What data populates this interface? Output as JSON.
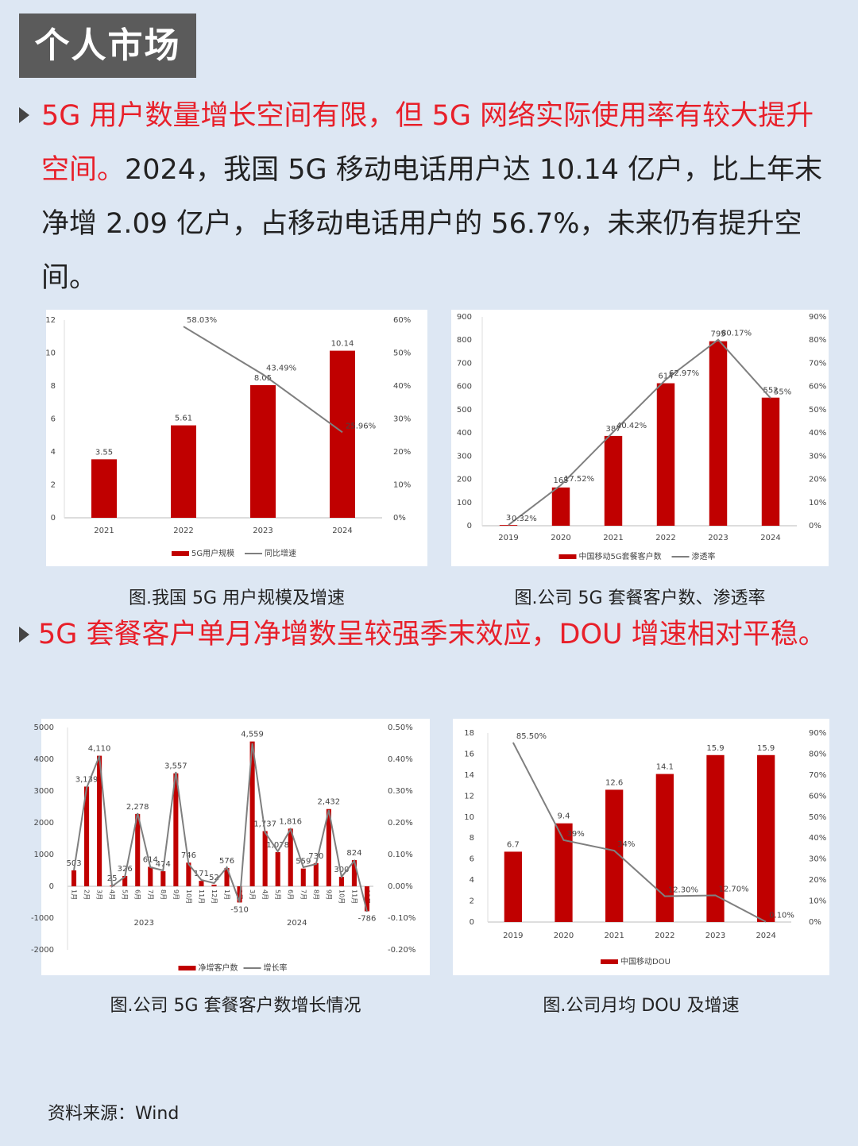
{
  "header": {
    "title": "个人市场"
  },
  "paragraphs": [
    {
      "highlight": "5G 用户数量增长空间有限，但 5G 网络实际使用率有较大提升空间。",
      "text": "2024，我国 5G 移动电话用户达 10.14 亿户，比上年末净增 2.09 亿户，占移动电话用户的 56.7%，未来仍有提升空间。"
    },
    {
      "highlight": "5G 套餐客户单月净增数呈较强季末效应，DOU 增速相对平稳。"
    }
  ],
  "captions": [
    "图.我国 5G 用户规模及增速",
    "图.公司 5G 套餐客户数、渗透率",
    "图.公司 5G 套餐客户数增长情况",
    "图.公司月均 DOU 及增速"
  ],
  "source": "资料来源：Wind",
  "chart_data": [
    {
      "type": "bar",
      "categories": [
        "2021",
        "2022",
        "2023",
        "2024"
      ],
      "series": [
        {
          "name": "5G用户规模",
          "type": "bar",
          "color": "#c00000",
          "values": [
            3.55,
            5.61,
            8.05,
            10.14
          ]
        },
        {
          "name": "同比增速",
          "type": "line",
          "axis": "y2",
          "color": "#7f7f7f",
          "values": [
            null,
            58.03,
            43.49,
            25.96
          ],
          "value_labels": [
            null,
            "58.03%",
            "43.49%",
            "25.96%"
          ]
        }
      ],
      "ylim": [
        0,
        12
      ],
      "yticks": [
        0,
        2,
        4,
        6,
        8,
        10,
        12
      ],
      "y2lim": [
        0,
        60
      ],
      "y2ticks": [
        {
          "value": 0,
          "label": "0%"
        },
        {
          "value": 10,
          "label": "10%"
        },
        {
          "value": 20,
          "label": "20%"
        },
        {
          "value": 30,
          "label": "30%"
        },
        {
          "value": 40,
          "label": "40%"
        },
        {
          "value": 50,
          "label": "50%"
        },
        {
          "value": 60,
          "label": "60%"
        }
      ],
      "grid": false
    },
    {
      "type": "bar",
      "categories": [
        "2019",
        "2020",
        "2021",
        "2022",
        "2023",
        "2024"
      ],
      "series": [
        {
          "name": "中国移动5G套餐客户数",
          "type": "bar",
          "color": "#c00000",
          "values": [
            3,
            165,
            387,
            614,
            795,
            552
          ]
        },
        {
          "name": "渗透率",
          "type": "line",
          "axis": "y2",
          "color": "#7f7f7f",
          "values": [
            0.32,
            17.52,
            40.42,
            62.97,
            80.17,
            55
          ],
          "value_labels": [
            "0.32%",
            "17.52%",
            "40.42%",
            "62.97%",
            "80.17%",
            "55%"
          ]
        }
      ],
      "ylim": [
        0,
        900
      ],
      "yticks": [
        0,
        100,
        200,
        300,
        400,
        500,
        600,
        700,
        800,
        900
      ],
      "y2lim": [
        0,
        90
      ],
      "y2ticks": [
        {
          "value": 0,
          "label": "0%"
        },
        {
          "value": 10,
          "label": "10%"
        },
        {
          "value": 20,
          "label": "20%"
        },
        {
          "value": 30,
          "label": "30%"
        },
        {
          "value": 40,
          "label": "40%"
        },
        {
          "value": 50,
          "label": "50%"
        },
        {
          "value": 60,
          "label": "60%"
        },
        {
          "value": 70,
          "label": "70%"
        },
        {
          "value": 80,
          "label": "80%"
        },
        {
          "value": 90,
          "label": "90%"
        }
      ],
      "grid": false
    },
    {
      "type": "bar",
      "categories": [
        "1月",
        "2月",
        "3月",
        "4月",
        "5月",
        "6月",
        "7月",
        "8月",
        "9月",
        "10月",
        "11月",
        "12月",
        "1月",
        "2月",
        "3月",
        "4月",
        "5月",
        "6月",
        "7月",
        "8月",
        "9月",
        "10月",
        "11月",
        "12月"
      ],
      "group_labels": [
        "2023",
        "2024"
      ],
      "series": [
        {
          "name": "净增客户数",
          "type": "bar",
          "color": "#c00000",
          "values": [
            503,
            3139,
            4110,
            25,
            326,
            2278,
            614,
            474,
            3557,
            746,
            171,
            52,
            576,
            -510,
            4559,
            1737,
            1078,
            1816,
            559,
            730,
            2432,
            300,
            824,
            -786
          ],
          "value_labels": [
            "503",
            "3,139",
            "4,110",
            "25",
            "326",
            "2,278",
            "614",
            "474",
            "3,557",
            "746",
            "171",
            "52",
            "576",
            "-510",
            "4,559",
            "1,737",
            "1,078",
            "1,816",
            "559",
            "730",
            "2,432",
            "300",
            "824",
            "-786"
          ]
        },
        {
          "name": "增长率",
          "type": "line",
          "axis": "y2",
          "color": "#7f7f7f",
          "values": [
            0.05,
            0.31,
            0.41,
            0.0,
            0.03,
            0.23,
            0.06,
            0.05,
            0.36,
            0.07,
            0.02,
            0.01,
            0.06,
            -0.05,
            0.45,
            0.17,
            0.11,
            0.18,
            0.06,
            0.07,
            0.24,
            0.03,
            0.08,
            -0.08
          ]
        }
      ],
      "ylim": [
        -2000,
        5000
      ],
      "yticks": [
        -2000,
        -1000,
        0,
        1000,
        2000,
        3000,
        4000,
        5000
      ],
      "y2lim": [
        -0.2,
        0.5
      ],
      "y2ticks": [
        {
          "value": -0.2,
          "label": "-0.20%"
        },
        {
          "value": -0.1,
          "label": "-0.10%"
        },
        {
          "value": 0,
          "label": "0.00%"
        },
        {
          "value": 0.1,
          "label": "0.10%"
        },
        {
          "value": 0.2,
          "label": "0.20%"
        },
        {
          "value": 0.3,
          "label": "0.30%"
        },
        {
          "value": 0.4,
          "label": "0.40%"
        },
        {
          "value": 0.5,
          "label": "0.50%"
        }
      ],
      "grid": false
    },
    {
      "type": "bar",
      "categories": [
        "2019",
        "2020",
        "2021",
        "2022",
        "2023",
        "2024"
      ],
      "series": [
        {
          "name": "中国移动DOU",
          "type": "bar",
          "color": "#c00000",
          "values": [
            6.7,
            9.4,
            12.6,
            14.1,
            15.9,
            15.9
          ]
        },
        {
          "type": "line",
          "axis": "y2",
          "color": "#7f7f7f",
          "values": [
            85.5,
            39,
            34,
            12.3,
            12.7,
            0.1
          ],
          "value_labels": [
            "85.50%",
            "39%",
            "34%",
            "12.30%",
            "12.70%",
            "0.10%"
          ]
        }
      ],
      "ylim": [
        0,
        18
      ],
      "yticks": [
        0,
        2,
        4,
        6,
        8,
        10,
        12,
        14,
        16,
        18
      ],
      "y2lim": [
        0,
        90
      ],
      "y2ticks": [
        {
          "value": 0,
          "label": "0%"
        },
        {
          "value": 10,
          "label": "10%"
        },
        {
          "value": 20,
          "label": "20%"
        },
        {
          "value": 30,
          "label": "30%"
        },
        {
          "value": 40,
          "label": "40%"
        },
        {
          "value": 50,
          "label": "50%"
        },
        {
          "value": 60,
          "label": "60%"
        },
        {
          "value": 70,
          "label": "70%"
        },
        {
          "value": 80,
          "label": "80%"
        },
        {
          "value": 90,
          "label": "90%"
        }
      ],
      "grid": false
    }
  ]
}
